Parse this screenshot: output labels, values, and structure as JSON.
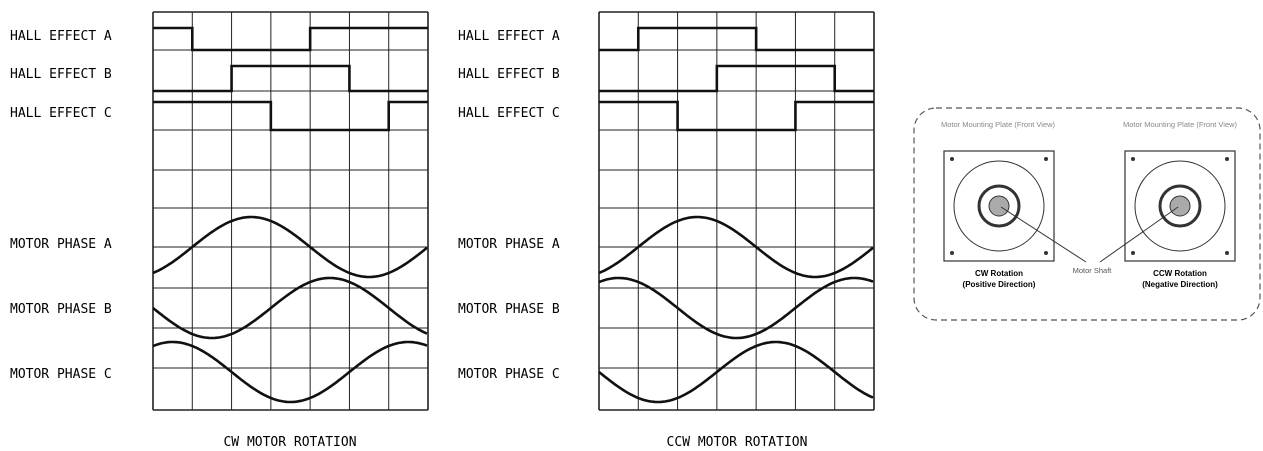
{
  "panels": [
    {
      "id": "cw",
      "caption": "CW MOTOR ROTATION",
      "hall_labels": [
        "HALL EFFECT A",
        "HALL EFFECT B",
        "HALL EFFECT C"
      ],
      "phase_labels": [
        "MOTOR PHASE A",
        "MOTOR PHASE B",
        "MOTOR PHASE C"
      ],
      "hall_patterns": [
        [
          1,
          0,
          0,
          0,
          1,
          1,
          1
        ],
        [
          0,
          0,
          1,
          1,
          1,
          0,
          0
        ],
        [
          1,
          1,
          1,
          0,
          0,
          0,
          1
        ]
      ],
      "phase_offsets_deg": [
        0,
        120,
        240
      ]
    },
    {
      "id": "ccw",
      "caption": "CCW MOTOR ROTATION",
      "hall_labels": [
        "HALL EFFECT A",
        "HALL EFFECT B",
        "HALL EFFECT C"
      ],
      "phase_labels": [
        "MOTOR PHASE A",
        "MOTOR PHASE B",
        "MOTOR PHASE C"
      ],
      "hall_patterns": [
        [
          0,
          1,
          1,
          1,
          0,
          0,
          0
        ],
        [
          0,
          0,
          0,
          1,
          1,
          1,
          0
        ],
        [
          1,
          1,
          0,
          0,
          0,
          1,
          1
        ]
      ],
      "phase_offsets_deg": [
        0,
        240,
        120
      ]
    }
  ],
  "rotation_diagram": {
    "plate_label": "Motor Mounting Plate (Front View)",
    "shaft_label": "Motor Shaft",
    "cw_label_line1": "CW Rotation",
    "cw_label_line2": "(Positive Direction)",
    "ccw_label_line1": "CCW Rotation",
    "ccw_label_line2": "(Negative Direction)"
  }
}
